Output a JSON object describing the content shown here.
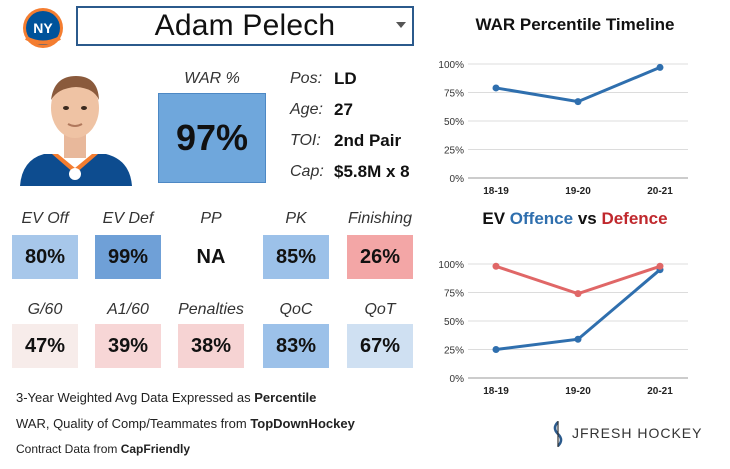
{
  "header": {
    "player_name": "Adam Pelech",
    "team": "NY Islanders"
  },
  "war": {
    "label": "WAR %",
    "value": "97%",
    "color": "#6fa7dc"
  },
  "info": [
    {
      "label": "Pos:",
      "value": "LD"
    },
    {
      "label": "Age:",
      "value": "27"
    },
    {
      "label": "TOI:",
      "value": "2nd Pair"
    },
    {
      "label": "Cap:",
      "value": "$5.8M x 8"
    }
  ],
  "stats_row1": [
    {
      "label": "EV Off",
      "value": "80%",
      "color": "#a7c7ea"
    },
    {
      "label": "EV Def",
      "value": "99%",
      "color": "#6fa0d7"
    },
    {
      "label": "PP",
      "value": "NA",
      "color": "#ffffff"
    },
    {
      "label": "PK",
      "value": "85%",
      "color": "#9cc1e9"
    },
    {
      "label": "Finishing",
      "value": "26%",
      "color": "#f3a6a6"
    }
  ],
  "stats_row2": [
    {
      "label": "G/60",
      "value": "47%",
      "color": "#f7ecea"
    },
    {
      "label": "A1/60",
      "value": "39%",
      "color": "#f7d6d6"
    },
    {
      "label": "Penalties",
      "value": "38%",
      "color": "#f6d3d3"
    },
    {
      "label": "QoC",
      "value": "83%",
      "color": "#9cc1e9"
    },
    {
      "label": "QoT",
      "value": "67%",
      "color": "#cfe0f2"
    }
  ],
  "footer": {
    "line1_text": "3-Year Weighted Avg Data Expressed as ",
    "line1_bold": "Percentile",
    "line2_text": "WAR, Quality of Comp/Teammates from ",
    "line2_bold": "TopDownHockey",
    "line3_text": "Contract Data from ",
    "line3_bold": "CapFriendly"
  },
  "watermark": "JFRESH HOCKEY",
  "chart_data": [
    {
      "type": "line",
      "title": "WAR Percentile Timeline",
      "categories": [
        "18-19",
        "19-20",
        "20-21"
      ],
      "series": [
        {
          "values": [
            79,
            67,
            97
          ],
          "color": "#2f6fae"
        }
      ],
      "ylim": [
        0,
        100
      ],
      "yticks": [
        "0%",
        "25%",
        "50%",
        "75%",
        "100%"
      ],
      "grid": true
    },
    {
      "type": "line",
      "title_parts": [
        "EV ",
        "Offence",
        " vs ",
        "Defence"
      ],
      "categories": [
        "18-19",
        "19-20",
        "20-21"
      ],
      "series": [
        {
          "name": "Offence",
          "values": [
            25,
            34,
            95
          ],
          "color": "#2f6fae"
        },
        {
          "name": "Defence",
          "values": [
            98,
            74,
            98
          ],
          "color": "#e06767"
        }
      ],
      "ylim": [
        0,
        100
      ],
      "yticks": [
        "0%",
        "25%",
        "50%",
        "75%",
        "100%"
      ],
      "grid": true
    }
  ]
}
